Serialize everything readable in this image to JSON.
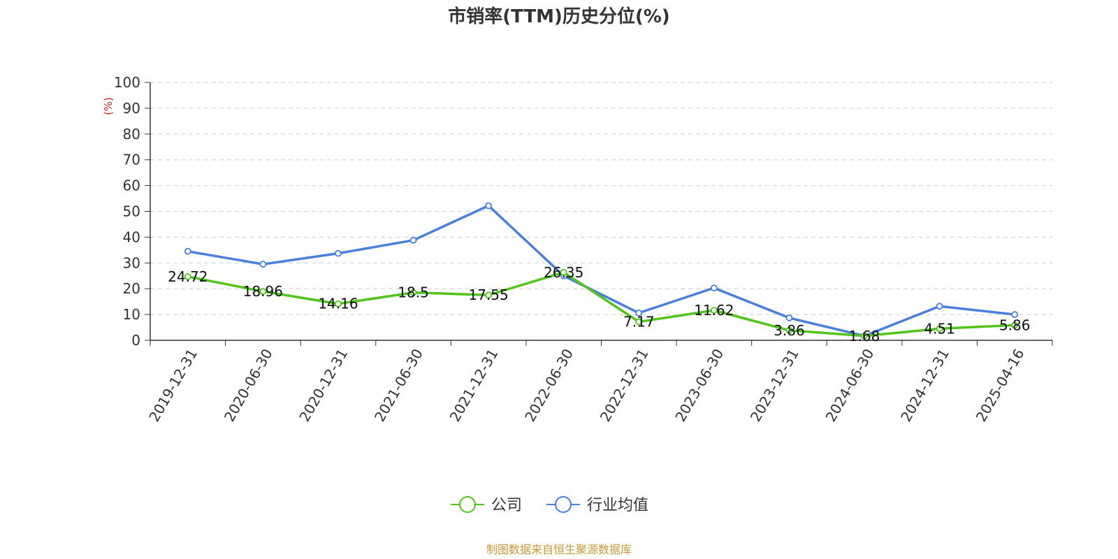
{
  "chart_data": {
    "type": "line",
    "title": "市销率(TTM)历史分位(%)",
    "ylabel": "(%)",
    "ylim": [
      0,
      100
    ],
    "yticks": [
      0,
      10,
      20,
      30,
      40,
      50,
      60,
      70,
      80,
      90,
      100
    ],
    "grid": true,
    "legend_position": "bottom",
    "categories": [
      "2019-12-31",
      "2020-06-30",
      "2020-12-31",
      "2021-06-30",
      "2021-12-31",
      "2022-06-30",
      "2022-12-31",
      "2023-06-30",
      "2023-12-31",
      "2024-06-30",
      "2024-12-31",
      "2025-04-16"
    ],
    "series": [
      {
        "name": "公司",
        "color": "#52c41a",
        "values": [
          24.72,
          18.96,
          14.16,
          18.5,
          17.55,
          26.35,
          7.17,
          11.62,
          3.86,
          1.68,
          4.51,
          5.86
        ],
        "labels": [
          "24.72",
          "18.96",
          "14.16",
          "18.5",
          "17.55",
          "26.35",
          "7.17",
          "11.62",
          "3.86",
          "1.68",
          "4.51",
          "5.86"
        ]
      },
      {
        "name": "行业均值",
        "color": "#4a7fdc",
        "values": [
          34.5,
          29.5,
          33.7,
          38.8,
          52.2,
          25.0,
          10.6,
          20.3,
          8.7,
          1.7,
          13.2,
          10.0
        ]
      }
    ]
  },
  "source": {
    "text": "制图数据来自恒生聚源数据库",
    "color": "#c49a3a"
  },
  "colors": {
    "axis": "#333333",
    "grid": "#cccccc",
    "unit": "#e02020"
  }
}
